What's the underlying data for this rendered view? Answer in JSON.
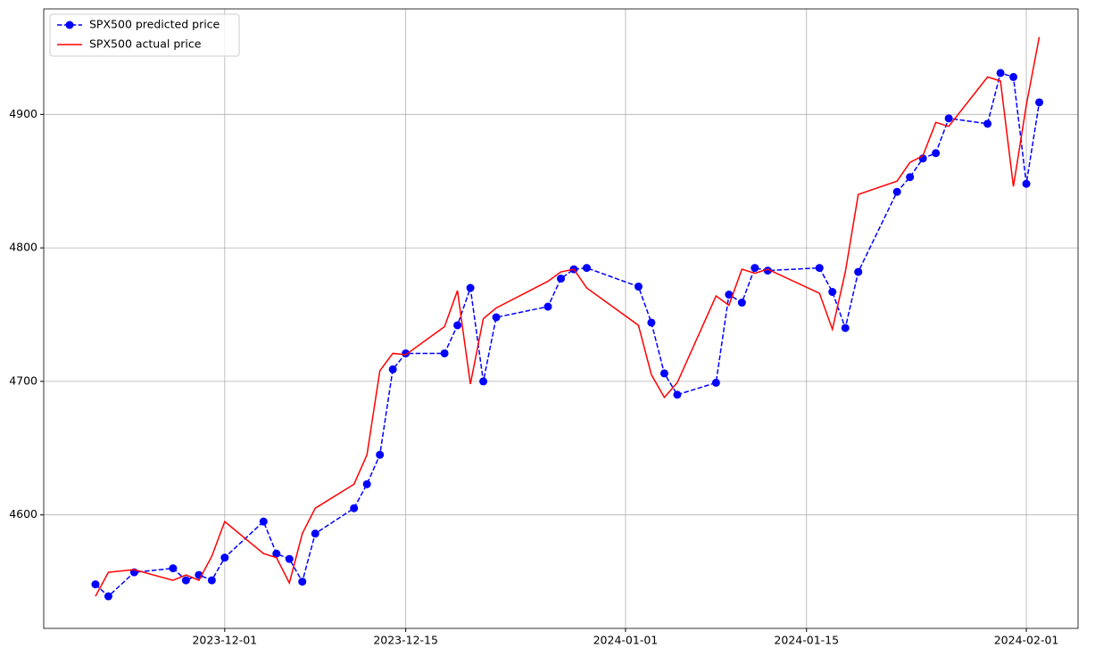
{
  "chart_data": {
    "type": "line",
    "x": [
      "2023-11-21",
      "2023-11-22",
      "2023-11-24",
      "2023-11-27",
      "2023-11-28",
      "2023-11-29",
      "2023-11-30",
      "2023-12-01",
      "2023-12-04",
      "2023-12-05",
      "2023-12-06",
      "2023-12-07",
      "2023-12-08",
      "2023-12-11",
      "2023-12-12",
      "2023-12-13",
      "2023-12-14",
      "2023-12-15",
      "2023-12-18",
      "2023-12-19",
      "2023-12-20",
      "2023-12-21",
      "2023-12-22",
      "2023-12-26",
      "2023-12-27",
      "2023-12-28",
      "2023-12-29",
      "2024-01-02",
      "2024-01-03",
      "2024-01-04",
      "2024-01-05",
      "2024-01-08",
      "2024-01-09",
      "2024-01-10",
      "2024-01-11",
      "2024-01-12",
      "2024-01-16",
      "2024-01-17",
      "2024-01-18",
      "2024-01-19",
      "2024-01-22",
      "2024-01-23",
      "2024-01-24",
      "2024-01-25",
      "2024-01-26",
      "2024-01-29",
      "2024-01-30",
      "2024-01-31",
      "2024-02-01",
      "2024-02-02"
    ],
    "series": [
      {
        "name": "SPX500 predicted price",
        "color": "#0000ff",
        "dashed": true,
        "marker": true,
        "values": [
          4548,
          4539,
          4557,
          4560,
          4551,
          4555,
          4551,
          4568,
          4595,
          4571,
          4567,
          4550,
          4586,
          4605,
          4623,
          4645,
          4709,
          4721,
          4721,
          4742,
          4770,
          4700,
          4748,
          4756,
          4777,
          4784,
          4785,
          4771,
          4744,
          4706,
          4690,
          4699,
          4765,
          4759,
          4785,
          4783,
          4785,
          4767,
          4740,
          4782,
          4842,
          4853,
          4867,
          4871,
          4897,
          4893,
          4931,
          4928,
          4848,
          4909
        ]
      },
      {
        "name": "SPX500 actual price",
        "color": "#ff0000",
        "dashed": false,
        "marker": false,
        "values": [
          4539,
          4557,
          4559,
          4551,
          4555,
          4551,
          4569,
          4595,
          4571,
          4568,
          4549,
          4586,
          4605,
          4623,
          4645,
          4708,
          4721,
          4720,
          4741,
          4768,
          4698,
          4747,
          4755,
          4775,
          4782,
          4784,
          4770,
          4742,
          4705,
          4688,
          4699,
          4764,
          4757,
          4784,
          4781,
          4784,
          4766,
          4739,
          4782,
          4840,
          4850,
          4864,
          4869,
          4894,
          4891,
          4928,
          4925,
          4846,
          4907,
          4958
        ]
      }
    ],
    "xlim": [
      "2023-11-17",
      "2024-02-05"
    ],
    "xticks": [
      "2023-12-01",
      "2023-12-15",
      "2024-01-01",
      "2024-01-15",
      "2024-02-01"
    ],
    "ylim": [
      4515,
      4979
    ],
    "yticks": [
      4600,
      4700,
      4800,
      4900
    ],
    "grid": true,
    "legend": "upper-left"
  }
}
